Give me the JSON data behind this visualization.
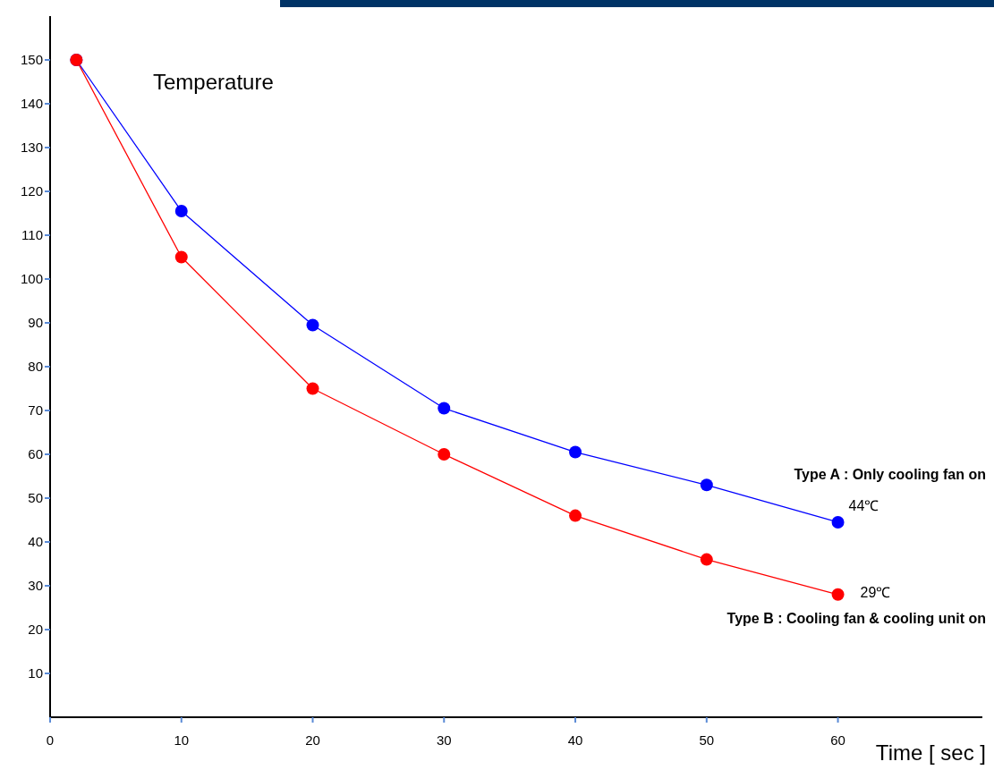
{
  "chart_data": {
    "type": "line",
    "ylabel": "Temperature",
    "xlabel": "Time [ sec ]",
    "xlim": [
      0,
      71
    ],
    "xticks": [
      0,
      10,
      20,
      30,
      40,
      50,
      60
    ],
    "ylim": [
      0,
      160
    ],
    "yticks": [
      10,
      20,
      30,
      40,
      50,
      60,
      70,
      80,
      90,
      100,
      110,
      120,
      130,
      140,
      150
    ],
    "x": [
      2,
      10,
      20,
      30,
      40,
      50,
      60
    ],
    "series": [
      {
        "name": "Type A : Only cooling fan on",
        "color": "#0000ff",
        "values": [
          150,
          115.5,
          89.5,
          70.5,
          60.5,
          53,
          44.5
        ]
      },
      {
        "name": "Type B : Cooling fan & cooling unit on",
        "color": "#ff0000",
        "values": [
          150,
          105,
          75,
          60,
          46,
          36,
          28
        ]
      }
    ],
    "annotations": [
      {
        "text": "44℃",
        "x": 60,
        "y": 44.5
      },
      {
        "text": "29℃",
        "x": 60,
        "y": 28
      }
    ],
    "marker": "circle",
    "line_style": "solid",
    "grid": false
  }
}
